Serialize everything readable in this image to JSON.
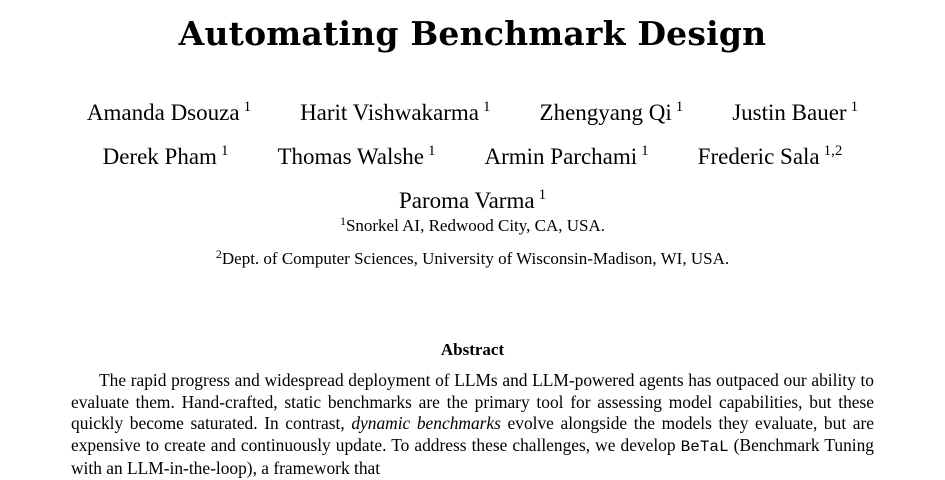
{
  "paper": {
    "title": "Automating Benchmark Design",
    "authors_row1": [
      {
        "name": "Amanda Dsouza",
        "affil": "1"
      },
      {
        "name": "Harit Vishwakarma",
        "affil": "1"
      },
      {
        "name": "Zhengyang Qi",
        "affil": "1"
      },
      {
        "name": "Justin Bauer",
        "affil": "1"
      }
    ],
    "authors_row2": [
      {
        "name": "Derek Pham",
        "affil": "1"
      },
      {
        "name": "Thomas Walshe",
        "affil": "1"
      },
      {
        "name": "Armin Parchami",
        "affil": "1"
      },
      {
        "name": "Frederic Sala",
        "affil": "1,2"
      }
    ],
    "authors_row3": [
      {
        "name": "Paroma Varma",
        "affil": "1"
      }
    ],
    "affiliations": [
      {
        "mark": "1",
        "text": "Snorkel AI, Redwood City, CA, USA."
      },
      {
        "mark": "2",
        "text": "Dept. of Computer Sciences, University of Wisconsin-Madison, WI, USA."
      }
    ],
    "abstract": {
      "heading": "Abstract",
      "part1": "The rapid progress and widespread deployment of LLMs and LLM-powered agents has outpaced our ability to evaluate them. Hand-crafted, static benchmarks are the primary tool for assessing model capabilities, but these quickly become saturated. In contrast, ",
      "italic": "dynamic benchmarks",
      "part2": " evolve alongside the models they evaluate, but are expensive to create and continuously update. To address these challenges, we develop ",
      "mono": "BeTaL",
      "part3": " (Benchmark Tuning with an LLM-in-the-loop), a framework that"
    }
  }
}
